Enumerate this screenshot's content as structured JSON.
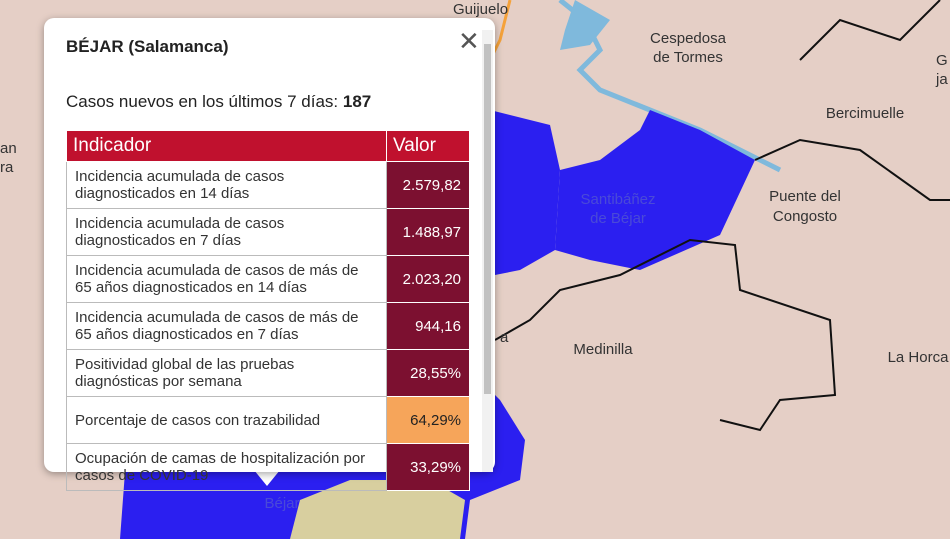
{
  "map": {
    "labels": [
      {
        "lines": [
          "Guijuelo"
        ]
      },
      {
        "lines": [
          "Cespedosa",
          "de Tormes"
        ]
      },
      {
        "lines": [
          "Bercimuelle"
        ]
      },
      {
        "lines": [
          "Puente del",
          "Congosto"
        ]
      },
      {
        "lines": [
          "Santibáñez",
          "de Béjar"
        ]
      },
      {
        "lines": [
          "Medinilla"
        ]
      },
      {
        "lines": [
          "La Horca"
        ]
      },
      {
        "lines": [
          "Béjar"
        ]
      },
      {
        "lines": [
          "an",
          "ra"
        ]
      },
      {
        "lines": [
          "G",
          "ja"
        ]
      },
      {
        "lines": [
          "a"
        ]
      }
    ]
  },
  "popup": {
    "title": "BÉJAR (Salamanca)",
    "summary": {
      "label": "Casos nuevos en los últimos 7 días:",
      "value": "187"
    },
    "table": {
      "header": [
        "Indicador",
        "Valor"
      ],
      "rows": [
        [
          "Incidencia acumulada de casos diagnosticados en 14 días",
          "2.579,82"
        ],
        [
          "Incidencia acumulada de casos diagnosticados en 7 días",
          "1.488,97"
        ],
        [
          "Incidencia acumulada de casos de más de 65 años diagnosticados en 14 días",
          "2.023,20"
        ],
        [
          "Incidencia acumulada de casos de más de 65 años diagnosticados en 7 días",
          "944,16"
        ],
        [
          "Positividad global de las pruebas diagnósticas por semana",
          "28,55%"
        ],
        [
          "Porcentaje de casos con trazabilidad",
          "64,29%"
        ],
        [
          "Ocupación de camas de hospitalización por casos de COVID-19",
          "33,29%"
        ]
      ]
    }
  }
}
